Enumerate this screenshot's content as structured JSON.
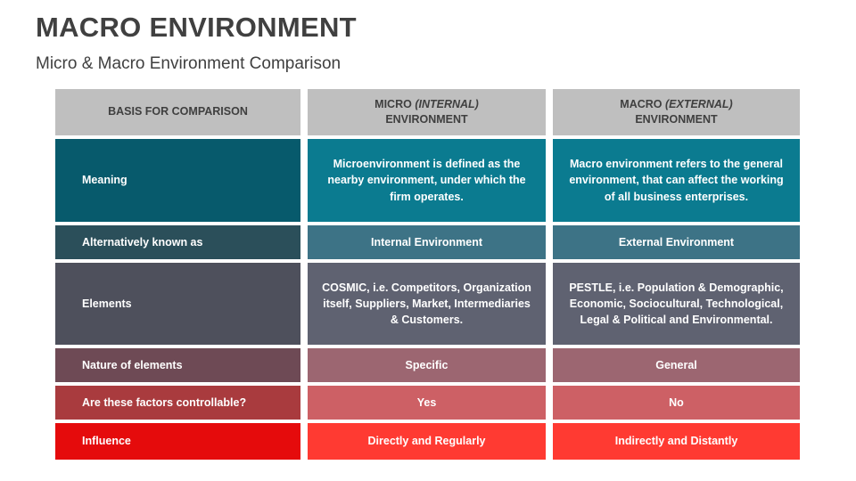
{
  "page": {
    "title": "MACRO ENVIRONMENT",
    "subtitle": "Micro & Macro Environment Comparison"
  },
  "table": {
    "header": {
      "basis": "BASIS FOR COMPARISON",
      "micro": {
        "name": "MICRO",
        "qualifier": "(INTERNAL)",
        "line2": "ENVIRONMENT"
      },
      "macro": {
        "name": "MACRO",
        "qualifier": "(EXTERNAL)",
        "line2": "ENVIRONMENT"
      }
    },
    "rows": [
      {
        "label": "Meaning",
        "micro": "Microenvironment is defined as the nearby environment, under which the firm operates.",
        "macro": "Macro environment refers to the general environment, that can affect the working of all business enterprises.",
        "colors": {
          "label": "#075a6c",
          "cells": "#0b7b90"
        }
      },
      {
        "label": "Alternatively known as",
        "micro": "Internal Environment",
        "macro": "External Environment",
        "colors": {
          "label": "#2b4f5a",
          "cells": "#3d7386"
        }
      },
      {
        "label": "Elements",
        "micro": "COSMIC, i.e. Competitors, Organization itself, Suppliers, Market, Intermediaries & Customers.",
        "macro": "PESTLE, i.e. Population & Demographic, Economic, Sociocultural, Technological, Legal & Political and Environmental.",
        "colors": {
          "label": "#4e505c",
          "cells": "#5f6271"
        }
      },
      {
        "label": "Nature of elements",
        "micro": "Specific",
        "macro": "General",
        "colors": {
          "label": "#6e4a55",
          "cells": "#9c6671"
        }
      },
      {
        "label": "Are these factors controllable?",
        "micro": "Yes",
        "macro": "No",
        "colors": {
          "label": "#a93b3e",
          "cells": "#cd6065"
        }
      },
      {
        "label": "Influence",
        "micro": "Directly and Regularly",
        "macro": "Indirectly and Distantly",
        "colors": {
          "label": "#e50b0c",
          "cells": "#ff3a32"
        }
      }
    ],
    "header_colors": {
      "bg": "#bfbfbf",
      "text": "#3f3f3f"
    }
  }
}
